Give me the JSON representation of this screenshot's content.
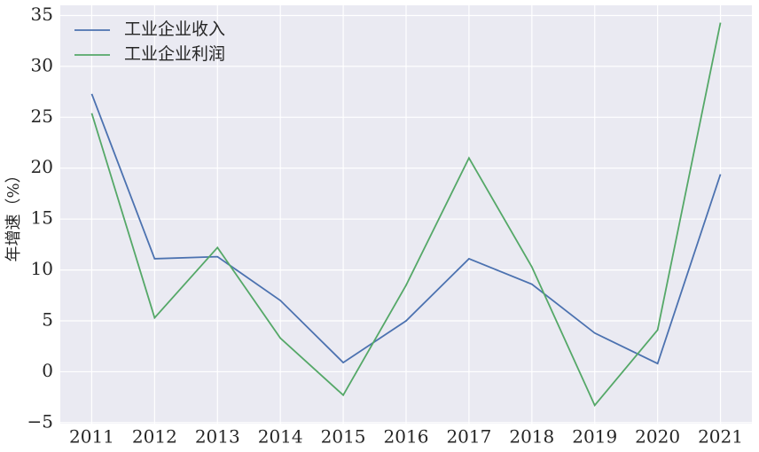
{
  "chart_data": {
    "type": "line",
    "y_label": "年增速（%）",
    "x": [
      2011,
      2012,
      2013,
      2014,
      2015,
      2016,
      2017,
      2018,
      2019,
      2020,
      2021
    ],
    "series": [
      {
        "name": "工业企业收入",
        "color": "#4c72b0",
        "values": [
          27.3,
          11.1,
          11.3,
          7.0,
          0.9,
          5.0,
          11.1,
          8.6,
          3.8,
          0.8,
          19.4
        ]
      },
      {
        "name": "工业企业利润",
        "color": "#55a868",
        "values": [
          25.4,
          5.3,
          12.2,
          3.3,
          -2.3,
          8.5,
          21.0,
          10.3,
          -3.3,
          4.1,
          34.3
        ]
      }
    ],
    "xlim": [
      2010.5,
      2021.5
    ],
    "xticks": [
      2011,
      2012,
      2013,
      2014,
      2015,
      2016,
      2017,
      2018,
      2019,
      2020,
      2021
    ],
    "ylim": [
      -5.1,
      36
    ],
    "yticks": [
      {
        "value": -5,
        "label": "−5"
      },
      0,
      5,
      10,
      15,
      20,
      25,
      30,
      35
    ],
    "grid": true,
    "legend": "upper-left"
  }
}
